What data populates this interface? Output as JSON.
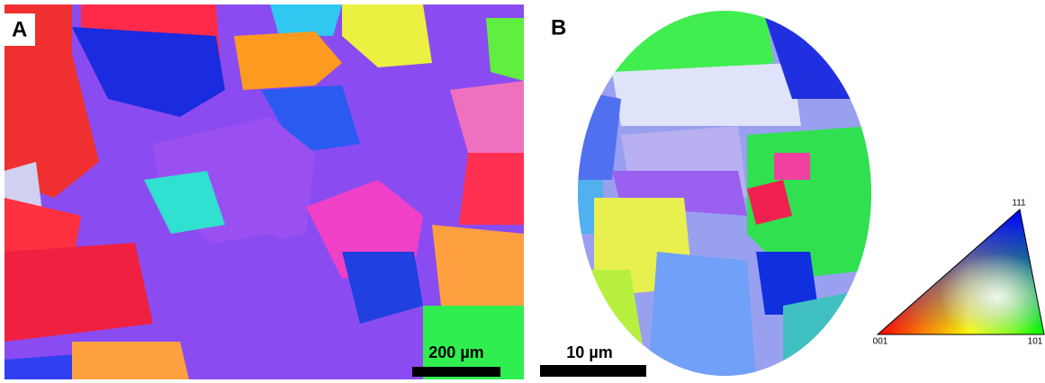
{
  "panels": {
    "a": {
      "label": "A",
      "scale_bar": "200 µm"
    },
    "b": {
      "label": "B",
      "scale_bar": "10 µm"
    }
  },
  "legend": {
    "top": "111",
    "left": "001",
    "right": "101"
  }
}
